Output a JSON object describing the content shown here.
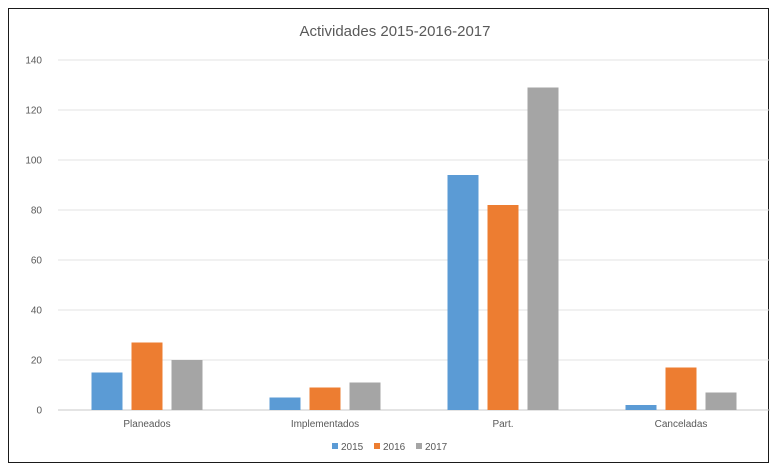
{
  "chart_data": {
    "type": "bar",
    "title": "Actividades 2015-2016-2017",
    "xlabel": "",
    "ylabel": "",
    "categories": [
      "Planeados",
      "Implementados",
      "Part.",
      "Canceladas"
    ],
    "series": [
      {
        "name": "2015",
        "values": [
          15,
          5,
          94,
          2
        ],
        "color": "#5b9bd5"
      },
      {
        "name": "2016",
        "values": [
          27,
          9,
          82,
          17
        ],
        "color": "#ed7d31"
      },
      {
        "name": "2017",
        "values": [
          20,
          11,
          129,
          7
        ],
        "color": "#a5a5a5"
      }
    ],
    "ylim": [
      0,
      140
    ],
    "yticks": [
      0,
      20,
      40,
      60,
      80,
      100,
      120,
      140
    ],
    "grid": true,
    "legend": "bottom"
  }
}
